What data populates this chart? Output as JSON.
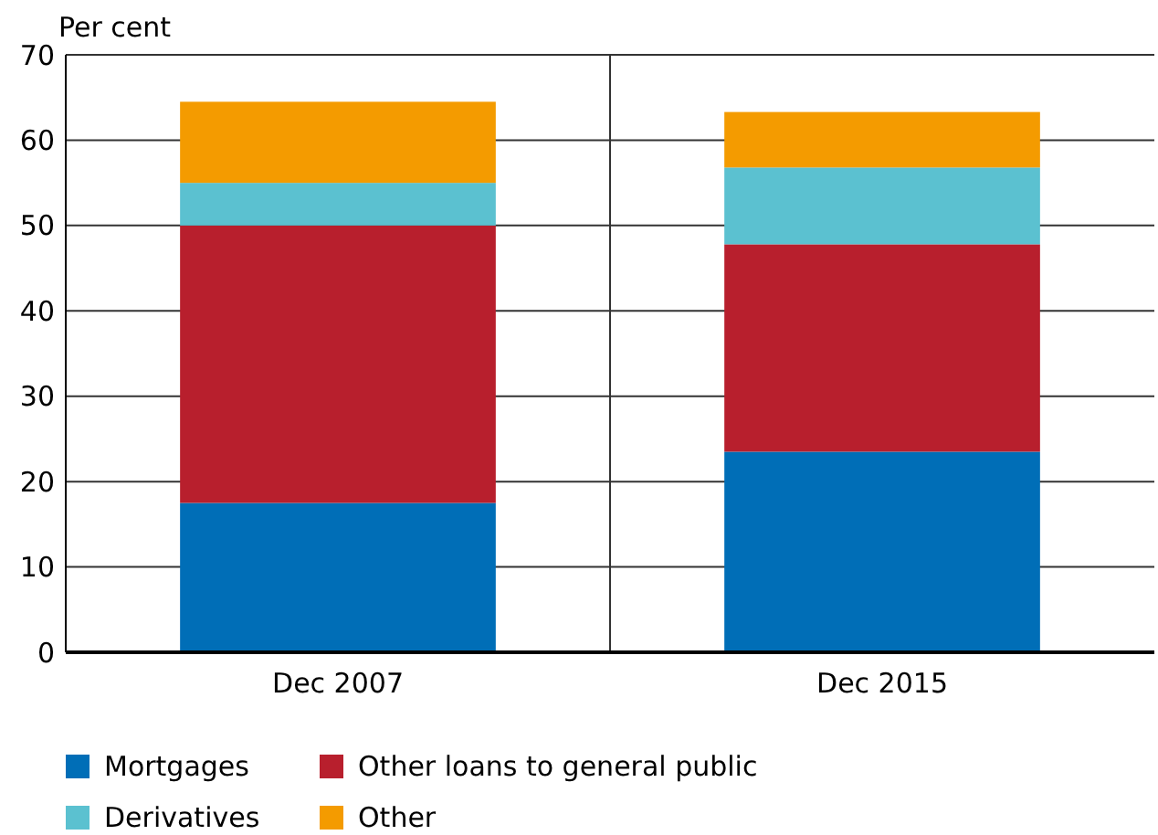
{
  "chart_data": {
    "type": "bar",
    "stacked": true,
    "ylabel": "Per cent",
    "categories": [
      "Dec 2007",
      "Dec 2015"
    ],
    "series": [
      {
        "name": "Mortgages",
        "color": "#006eb7",
        "values": [
          17.5,
          23.5
        ]
      },
      {
        "name": "Other loans to general public",
        "color": "#b81f2d",
        "values": [
          32.5,
          24.3
        ]
      },
      {
        "name": "Derivatives",
        "color": "#5bc1d0",
        "values": [
          5,
          9
        ]
      },
      {
        "name": "Other",
        "color": "#f49b00",
        "values": [
          9.5,
          6.5
        ]
      }
    ],
    "ylim": [
      0,
      70
    ],
    "yticks": [
      0,
      10,
      20,
      30,
      40,
      50,
      60,
      70
    ],
    "grid": "y",
    "legend": "bottom"
  }
}
